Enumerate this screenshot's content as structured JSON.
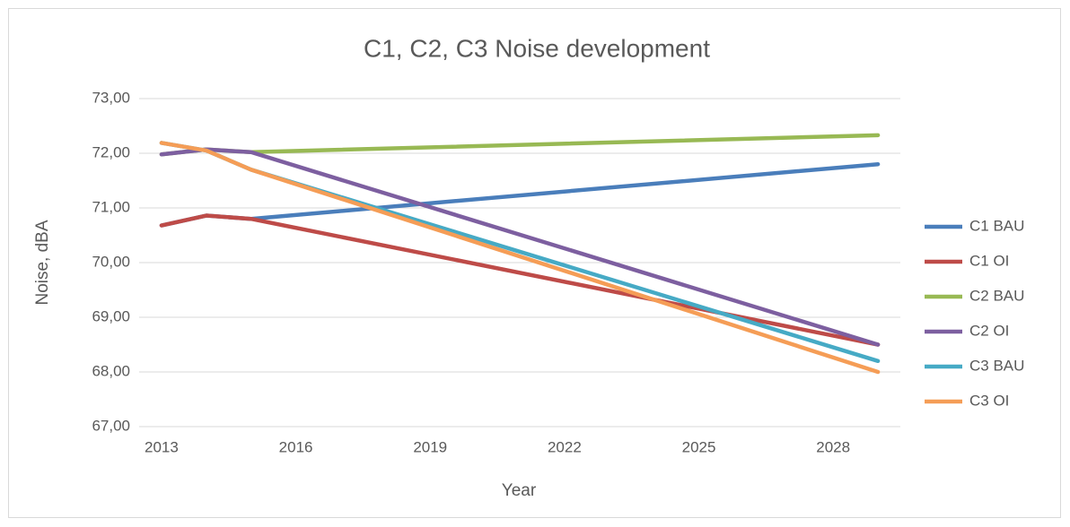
{
  "chart_data": {
    "type": "line",
    "title": "C1, C2, C3 Noise development",
    "x_label": "Year",
    "y_label": "Noise, dBA",
    "x": [
      2013,
      2014,
      2015,
      2029
    ],
    "series": [
      {
        "name": "C1 BAU",
        "color": "#4a7ebb",
        "values": [
          70.68,
          70.86,
          70.8,
          71.8
        ]
      },
      {
        "name": "C1 OI",
        "color": "#be4b48",
        "values": [
          70.68,
          70.86,
          70.8,
          68.5
        ]
      },
      {
        "name": "C2 BAU",
        "color": "#98b954",
        "values": [
          71.98,
          72.07,
          72.02,
          72.33
        ]
      },
      {
        "name": "C2 OI",
        "color": "#7d5fa0",
        "values": [
          71.98,
          72.07,
          72.02,
          68.5
        ]
      },
      {
        "name": "C3 BAU",
        "color": "#46aac5",
        "values": [
          72.19,
          72.05,
          71.7,
          68.2
        ]
      },
      {
        "name": "C3 OI",
        "color": "#f59d56",
        "values": [
          72.19,
          72.05,
          71.7,
          68.0
        ]
      }
    ],
    "xlim": [
      2012.5,
      2029.5
    ],
    "xticks": [
      2013,
      2016,
      2019,
      2022,
      2025,
      2028
    ],
    "ylim": [
      67,
      73
    ],
    "yticks": [
      {
        "value": 67,
        "label": "67,00"
      },
      {
        "value": 68,
        "label": "68,00"
      },
      {
        "value": 69,
        "label": "69,00"
      },
      {
        "value": 70,
        "label": "70,00"
      },
      {
        "value": 71,
        "label": "71,00"
      },
      {
        "value": 72,
        "label": "72,00"
      },
      {
        "value": 73,
        "label": "73,00"
      }
    ],
    "grid": true,
    "legend": "right"
  }
}
